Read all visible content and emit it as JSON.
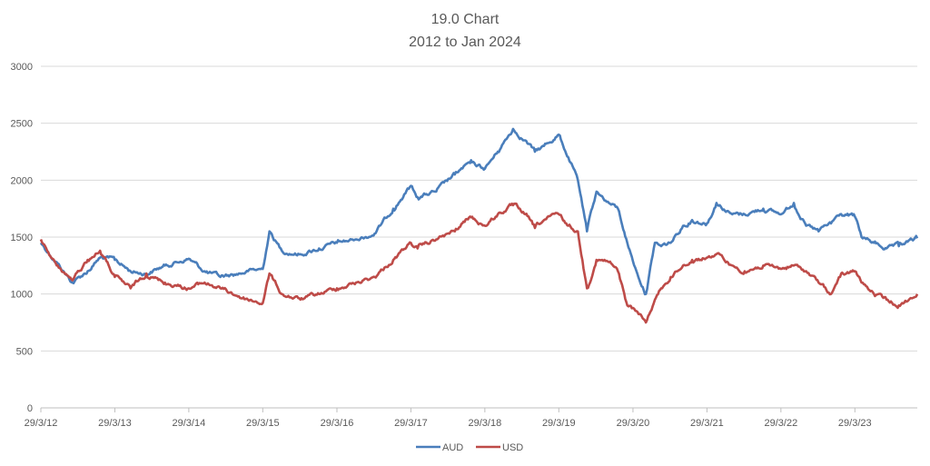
{
  "chart_data": {
    "type": "line",
    "title": "19.0 Chart",
    "subtitle": "2012 to Jan 2024",
    "xlabel": "",
    "ylabel": "",
    "ylim": [
      0,
      3000
    ],
    "yticks": [
      0,
      500,
      1000,
      1500,
      2000,
      2500,
      3000
    ],
    "xlim": [
      "2012-03-29",
      "2024-01-31"
    ],
    "xtick_dates": [
      "2012-03-29",
      "2013-03-29",
      "2014-03-29",
      "2015-03-29",
      "2016-03-29",
      "2017-03-29",
      "2018-03-29",
      "2019-03-29",
      "2020-03-29",
      "2021-03-29",
      "2022-03-29",
      "2023-03-29"
    ],
    "xtick_labels": [
      "29/3/12",
      "29/3/13",
      "29/3/14",
      "29/3/15",
      "29/3/16",
      "29/3/17",
      "29/3/18",
      "29/3/19",
      "29/3/20",
      "29/3/21",
      "29/3/22",
      "29/3/23"
    ],
    "grid": "horizontal",
    "legend": "bottom",
    "colors": {
      "AUD": "#4a7ebb",
      "USD": "#be4b48",
      "grid": "#d9d9d9",
      "axis": "#bfbfbf"
    },
    "series": [
      {
        "name": "AUD",
        "x": [
          "2012-03-29",
          "2012-06-15",
          "2012-09-01",
          "2012-11-15",
          "2013-01-15",
          "2013-03-29",
          "2013-06-15",
          "2013-09-01",
          "2013-12-01",
          "2014-03-29",
          "2014-06-15",
          "2014-09-01",
          "2014-12-01",
          "2015-01-15",
          "2015-03-29",
          "2015-05-01",
          "2015-07-01",
          "2015-10-01",
          "2016-01-01",
          "2016-03-29",
          "2016-07-01",
          "2016-10-01",
          "2017-01-01",
          "2017-03-29",
          "2017-05-01",
          "2017-08-01",
          "2017-11-01",
          "2018-01-15",
          "2018-03-29",
          "2018-06-01",
          "2018-08-15",
          "2018-10-15",
          "2018-12-01",
          "2019-01-15",
          "2019-03-29",
          "2019-05-15",
          "2019-07-01",
          "2019-08-15",
          "2019-10-01",
          "2019-12-01",
          "2020-01-15",
          "2020-03-01",
          "2020-04-15",
          "2020-06-01",
          "2020-07-15",
          "2020-08-15",
          "2020-10-01",
          "2020-12-01",
          "2021-01-15",
          "2021-03-29",
          "2021-05-15",
          "2021-08-01",
          "2021-10-01",
          "2022-01-01",
          "2022-03-29",
          "2022-06-01",
          "2022-08-01",
          "2022-10-01",
          "2022-12-01",
          "2023-01-15",
          "2023-03-29",
          "2023-05-01",
          "2023-07-01",
          "2023-09-01",
          "2023-11-01",
          "2024-01-31"
        ],
        "values": [
          1450,
          1280,
          1100,
          1200,
          1320,
          1300,
          1200,
          1180,
          1250,
          1310,
          1200,
          1150,
          1180,
          1200,
          1220,
          1550,
          1380,
          1350,
          1400,
          1450,
          1480,
          1530,
          1750,
          1950,
          1850,
          1900,
          2050,
          2150,
          2100,
          2250,
          2450,
          2350,
          2250,
          2300,
          2400,
          2200,
          2000,
          1550,
          1900,
          1800,
          1750,
          1450,
          1200,
          1000,
          1450,
          1420,
          1450,
          1600,
          1650,
          1620,
          1800,
          1700,
          1700,
          1750,
          1700,
          1800,
          1600,
          1550,
          1620,
          1700,
          1680,
          1500,
          1450,
          1400,
          1420,
          1490
        ]
      },
      {
        "name": "USD",
        "x": [
          "2012-03-29",
          "2012-06-15",
          "2012-09-01",
          "2012-11-15",
          "2013-01-15",
          "2013-03-29",
          "2013-06-15",
          "2013-09-01",
          "2013-12-01",
          "2014-03-29",
          "2014-06-15",
          "2014-09-01",
          "2014-12-01",
          "2015-01-15",
          "2015-03-29",
          "2015-05-01",
          "2015-07-01",
          "2015-10-01",
          "2016-01-01",
          "2016-03-29",
          "2016-07-01",
          "2016-10-01",
          "2017-01-01",
          "2017-03-29",
          "2017-05-01",
          "2017-08-01",
          "2017-11-01",
          "2018-01-15",
          "2018-03-29",
          "2018-06-01",
          "2018-08-15",
          "2018-10-15",
          "2018-12-01",
          "2019-01-15",
          "2019-03-29",
          "2019-05-15",
          "2019-07-01",
          "2019-08-15",
          "2019-10-01",
          "2019-12-01",
          "2020-01-15",
          "2020-03-01",
          "2020-04-15",
          "2020-06-01",
          "2020-07-15",
          "2020-08-15",
          "2020-10-01",
          "2020-12-01",
          "2021-01-15",
          "2021-03-29",
          "2021-05-15",
          "2021-08-01",
          "2021-10-01",
          "2022-01-01",
          "2022-03-29",
          "2022-06-01",
          "2022-08-01",
          "2022-10-01",
          "2022-12-01",
          "2023-01-15",
          "2023-03-29",
          "2023-05-01",
          "2023-07-01",
          "2023-09-01",
          "2023-11-01",
          "2024-01-31"
        ],
        "values": [
          1480,
          1250,
          1120,
          1300,
          1380,
          1150,
          1050,
          1180,
          1100,
          1050,
          1100,
          1050,
          980,
          950,
          920,
          1180,
          1000,
          950,
          1000,
          1050,
          1100,
          1150,
          1300,
          1450,
          1400,
          1480,
          1550,
          1680,
          1600,
          1700,
          1780,
          1700,
          1580,
          1650,
          1700,
          1600,
          1550,
          1050,
          1300,
          1280,
          1200,
          900,
          850,
          750,
          950,
          1050,
          1150,
          1250,
          1300,
          1320,
          1350,
          1250,
          1200,
          1250,
          1220,
          1250,
          1200,
          1100,
          1000,
          1150,
          1200,
          1100,
          1000,
          950,
          900,
          1000
        ]
      }
    ]
  }
}
